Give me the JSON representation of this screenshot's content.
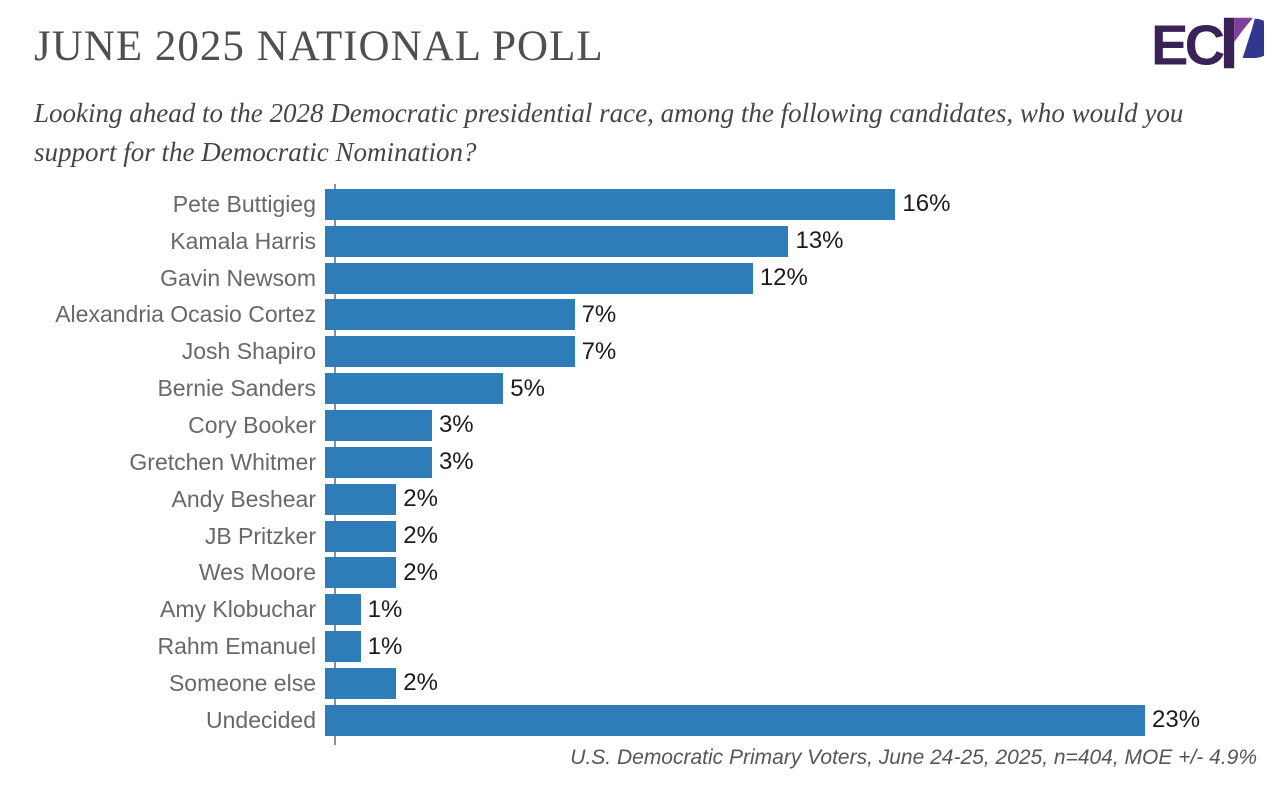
{
  "header": {
    "title": "JUNE 2025 NATIONAL POLL",
    "subtitle": "Looking ahead to the 2028 Democratic presidential race, among the following candidates, who would you support for the Democratic Nomination?",
    "logo_text": "ECP",
    "logo_colors": {
      "dark_purple": "#3a2257",
      "purple": "#7d3f98",
      "blue": "#31378e"
    }
  },
  "chart_data": {
    "type": "bar",
    "orientation": "horizontal",
    "title": "JUNE 2025 NATIONAL POLL",
    "question": "Looking ahead to the 2028 Democratic presidential race, among the following candidates, who would you support for the Democratic Nomination?",
    "categories": [
      "Pete Buttigieg",
      "Kamala Harris",
      "Gavin Newsom",
      "Alexandria Ocasio Cortez",
      "Josh Shapiro",
      "Bernie Sanders",
      "Cory Booker",
      "Gretchen Whitmer",
      "Andy Beshear",
      "JB Pritzker",
      "Wes Moore",
      "Amy Klobuchar",
      "Rahm Emanuel",
      "Someone else",
      "Undecided"
    ],
    "values": [
      16,
      13,
      12,
      7,
      7,
      5,
      3,
      3,
      2,
      2,
      2,
      1,
      1,
      2,
      23
    ],
    "value_labels": [
      "16%",
      "13%",
      "12%",
      "7%",
      "7%",
      "5%",
      "3%",
      "3%",
      "2%",
      "2%",
      "2%",
      "1%",
      "1%",
      "2%",
      "23%"
    ],
    "unit": "%",
    "bar_color": "#2E7CB8",
    "xlim": [
      0,
      23
    ],
    "grid": false,
    "legend": false,
    "value_label_position": "end-of-bar"
  },
  "footer": {
    "source_note": "U.S. Democratic Primary Voters, June 24-25, 2025, n=404, MOE +/- 4.9%"
  }
}
